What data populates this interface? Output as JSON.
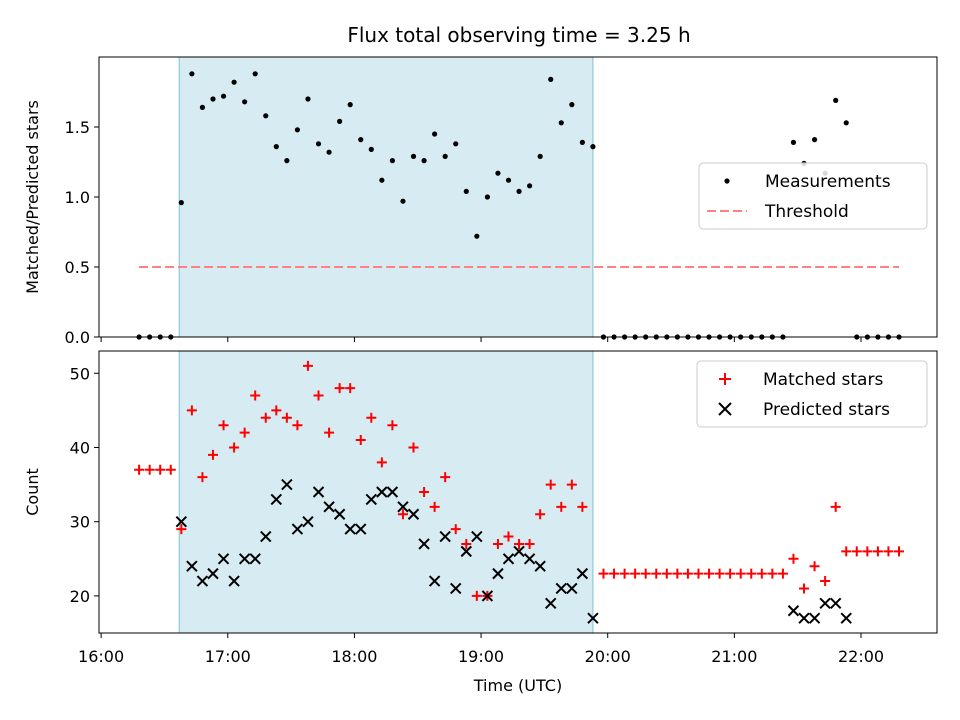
{
  "title": "Flux total observing time = 3.25 h",
  "chart_data": [
    {
      "type": "scatter",
      "panel": "top",
      "ylabel": "Matched/Predicted stars",
      "ylim": [
        0,
        2.0
      ],
      "yticks": [
        0.0,
        0.5,
        1.0,
        1.5
      ],
      "ytick_labels": [
        "0.0",
        "0.5",
        "1.0",
        "1.5"
      ],
      "grid": false,
      "legend_position": "center-right",
      "shaded_interval": [
        "16:37",
        "19:53"
      ],
      "series": [
        {
          "name": "Measurements",
          "marker": "dot",
          "color": "#000000",
          "points": [
            [
              "16:18",
              0.0
            ],
            [
              "16:23",
              0.0
            ],
            [
              "16:28",
              0.0
            ],
            [
              "16:33",
              0.0
            ],
            [
              "16:38",
              0.96
            ],
            [
              "16:43",
              1.88
            ],
            [
              "16:48",
              1.64
            ],
            [
              "16:53",
              1.7
            ],
            [
              "16:58",
              1.72
            ],
            [
              "17:03",
              1.82
            ],
            [
              "17:08",
              1.68
            ],
            [
              "17:13",
              1.88
            ],
            [
              "17:18",
              1.58
            ],
            [
              "17:23",
              1.36
            ],
            [
              "17:28",
              1.26
            ],
            [
              "17:33",
              1.48
            ],
            [
              "17:38",
              1.7
            ],
            [
              "17:43",
              1.38
            ],
            [
              "17:48",
              1.32
            ],
            [
              "17:53",
              1.54
            ],
            [
              "17:58",
              1.66
            ],
            [
              "18:03",
              1.41
            ],
            [
              "18:08",
              1.34
            ],
            [
              "18:13",
              1.12
            ],
            [
              "18:18",
              1.26
            ],
            [
              "18:23",
              0.97
            ],
            [
              "18:28",
              1.29
            ],
            [
              "18:33",
              1.26
            ],
            [
              "18:38",
              1.45
            ],
            [
              "18:43",
              1.29
            ],
            [
              "18:48",
              1.38
            ],
            [
              "18:53",
              1.04
            ],
            [
              "18:58",
              0.72
            ],
            [
              "19:03",
              1.0
            ],
            [
              "19:08",
              1.17
            ],
            [
              "19:13",
              1.12
            ],
            [
              "19:18",
              1.04
            ],
            [
              "19:23",
              1.08
            ],
            [
              "19:28",
              1.29
            ],
            [
              "19:33",
              1.84
            ],
            [
              "19:38",
              1.53
            ],
            [
              "19:43",
              1.66
            ],
            [
              "19:48",
              1.39
            ],
            [
              "19:53",
              1.36
            ],
            [
              "19:58",
              0.0
            ],
            [
              "20:03",
              0.0
            ],
            [
              "20:08",
              0.0
            ],
            [
              "20:13",
              0.0
            ],
            [
              "20:18",
              0.0
            ],
            [
              "20:23",
              0.0
            ],
            [
              "20:28",
              0.0
            ],
            [
              "20:33",
              0.0
            ],
            [
              "20:38",
              0.0
            ],
            [
              "20:43",
              0.0
            ],
            [
              "20:48",
              0.0
            ],
            [
              "20:53",
              0.0
            ],
            [
              "20:58",
              0.0
            ],
            [
              "21:03",
              0.0
            ],
            [
              "21:08",
              0.0
            ],
            [
              "21:13",
              0.0
            ],
            [
              "21:18",
              0.0
            ],
            [
              "21:23",
              0.0
            ],
            [
              "21:28",
              1.39
            ],
            [
              "21:33",
              1.24
            ],
            [
              "21:38",
              1.41
            ],
            [
              "21:43",
              1.17
            ],
            [
              "21:48",
              1.69
            ],
            [
              "21:53",
              1.53
            ],
            [
              "21:58",
              0.0
            ],
            [
              "22:03",
              0.0
            ],
            [
              "22:08",
              0.0
            ],
            [
              "22:13",
              0.0
            ],
            [
              "22:18",
              0.0
            ]
          ]
        },
        {
          "name": "Threshold",
          "marker": "dashed-line",
          "color": "#ff8080",
          "points": [
            [
              "16:18",
              0.5
            ],
            [
              "22:18",
              0.5
            ]
          ]
        }
      ]
    },
    {
      "type": "scatter",
      "panel": "bottom",
      "xlabel": "Time (UTC)",
      "ylabel": "Count",
      "ylim": [
        15,
        53
      ],
      "yticks": [
        20,
        30,
        40,
        50
      ],
      "ytick_labels": [
        "20",
        "30",
        "40",
        "50"
      ],
      "xlim": [
        "15:59",
        "22:36"
      ],
      "xticks": [
        "16:00",
        "17:00",
        "18:00",
        "19:00",
        "20:00",
        "21:00",
        "22:00"
      ],
      "xtick_labels": [
        "16:00",
        "17:00",
        "18:00",
        "19:00",
        "20:00",
        "21:00",
        "22:00"
      ],
      "grid": false,
      "legend_position": "top-right",
      "shaded_interval": [
        "16:37",
        "19:53"
      ],
      "series": [
        {
          "name": "Matched stars",
          "marker": "plus",
          "color": "#ff0000",
          "points": [
            [
              "16:18",
              37
            ],
            [
              "16:23",
              37
            ],
            [
              "16:28",
              37
            ],
            [
              "16:33",
              37
            ],
            [
              "16:38",
              29
            ],
            [
              "16:43",
              45
            ],
            [
              "16:48",
              36
            ],
            [
              "16:53",
              39
            ],
            [
              "16:58",
              43
            ],
            [
              "17:03",
              40
            ],
            [
              "17:08",
              42
            ],
            [
              "17:13",
              47
            ],
            [
              "17:18",
              44
            ],
            [
              "17:23",
              45
            ],
            [
              "17:28",
              44
            ],
            [
              "17:33",
              43
            ],
            [
              "17:38",
              51
            ],
            [
              "17:43",
              47
            ],
            [
              "17:48",
              42
            ],
            [
              "17:53",
              48
            ],
            [
              "17:58",
              48
            ],
            [
              "18:03",
              41
            ],
            [
              "18:08",
              44
            ],
            [
              "18:13",
              38
            ],
            [
              "18:18",
              43
            ],
            [
              "18:23",
              31
            ],
            [
              "18:28",
              40
            ],
            [
              "18:33",
              34
            ],
            [
              "18:38",
              32
            ],
            [
              "18:43",
              36
            ],
            [
              "18:48",
              29
            ],
            [
              "18:53",
              27
            ],
            [
              "18:58",
              20
            ],
            [
              "19:03",
              20
            ],
            [
              "19:08",
              27
            ],
            [
              "19:13",
              28
            ],
            [
              "19:18",
              27
            ],
            [
              "19:23",
              27
            ],
            [
              "19:28",
              31
            ],
            [
              "19:33",
              35
            ],
            [
              "19:38",
              32
            ],
            [
              "19:43",
              35
            ],
            [
              "19:48",
              32
            ],
            [
              "19:58",
              23
            ],
            [
              "20:03",
              23
            ],
            [
              "20:08",
              23
            ],
            [
              "20:13",
              23
            ],
            [
              "20:18",
              23
            ],
            [
              "20:23",
              23
            ],
            [
              "20:28",
              23
            ],
            [
              "20:33",
              23
            ],
            [
              "20:38",
              23
            ],
            [
              "20:43",
              23
            ],
            [
              "20:48",
              23
            ],
            [
              "20:53",
              23
            ],
            [
              "20:58",
              23
            ],
            [
              "21:03",
              23
            ],
            [
              "21:08",
              23
            ],
            [
              "21:13",
              23
            ],
            [
              "21:18",
              23
            ],
            [
              "21:23",
              23
            ],
            [
              "21:28",
              25
            ],
            [
              "21:33",
              21
            ],
            [
              "21:38",
              24
            ],
            [
              "21:43",
              22
            ],
            [
              "21:48",
              32
            ],
            [
              "21:53",
              26
            ],
            [
              "21:58",
              26
            ],
            [
              "22:03",
              26
            ],
            [
              "22:08",
              26
            ],
            [
              "22:13",
              26
            ],
            [
              "22:18",
              26
            ]
          ]
        },
        {
          "name": "Predicted stars",
          "marker": "x",
          "color": "#000000",
          "points": [
            [
              "16:38",
              30
            ],
            [
              "16:43",
              24
            ],
            [
              "16:48",
              22
            ],
            [
              "16:53",
              23
            ],
            [
              "16:58",
              25
            ],
            [
              "17:03",
              22
            ],
            [
              "17:08",
              25
            ],
            [
              "17:13",
              25
            ],
            [
              "17:18",
              28
            ],
            [
              "17:23",
              33
            ],
            [
              "17:28",
              35
            ],
            [
              "17:33",
              29
            ],
            [
              "17:38",
              30
            ],
            [
              "17:43",
              34
            ],
            [
              "17:48",
              32
            ],
            [
              "17:53",
              31
            ],
            [
              "17:58",
              29
            ],
            [
              "18:03",
              29
            ],
            [
              "18:08",
              33
            ],
            [
              "18:13",
              34
            ],
            [
              "18:18",
              34
            ],
            [
              "18:23",
              32
            ],
            [
              "18:28",
              31
            ],
            [
              "18:33",
              27
            ],
            [
              "18:38",
              22
            ],
            [
              "18:43",
              28
            ],
            [
              "18:48",
              21
            ],
            [
              "18:53",
              26
            ],
            [
              "18:58",
              28
            ],
            [
              "19:03",
              20
            ],
            [
              "19:08",
              23
            ],
            [
              "19:13",
              25
            ],
            [
              "19:18",
              26
            ],
            [
              "19:23",
              25
            ],
            [
              "19:28",
              24
            ],
            [
              "19:33",
              19
            ],
            [
              "19:38",
              21
            ],
            [
              "19:43",
              21
            ],
            [
              "19:48",
              23
            ],
            [
              "19:53",
              17
            ],
            [
              "21:28",
              18
            ],
            [
              "21:33",
              17
            ],
            [
              "21:38",
              17
            ],
            [
              "21:43",
              19
            ],
            [
              "21:48",
              19
            ],
            [
              "21:53",
              17
            ]
          ]
        }
      ]
    }
  ],
  "colors": {
    "shade": "#add8e6",
    "shade_alpha": 0.5
  }
}
